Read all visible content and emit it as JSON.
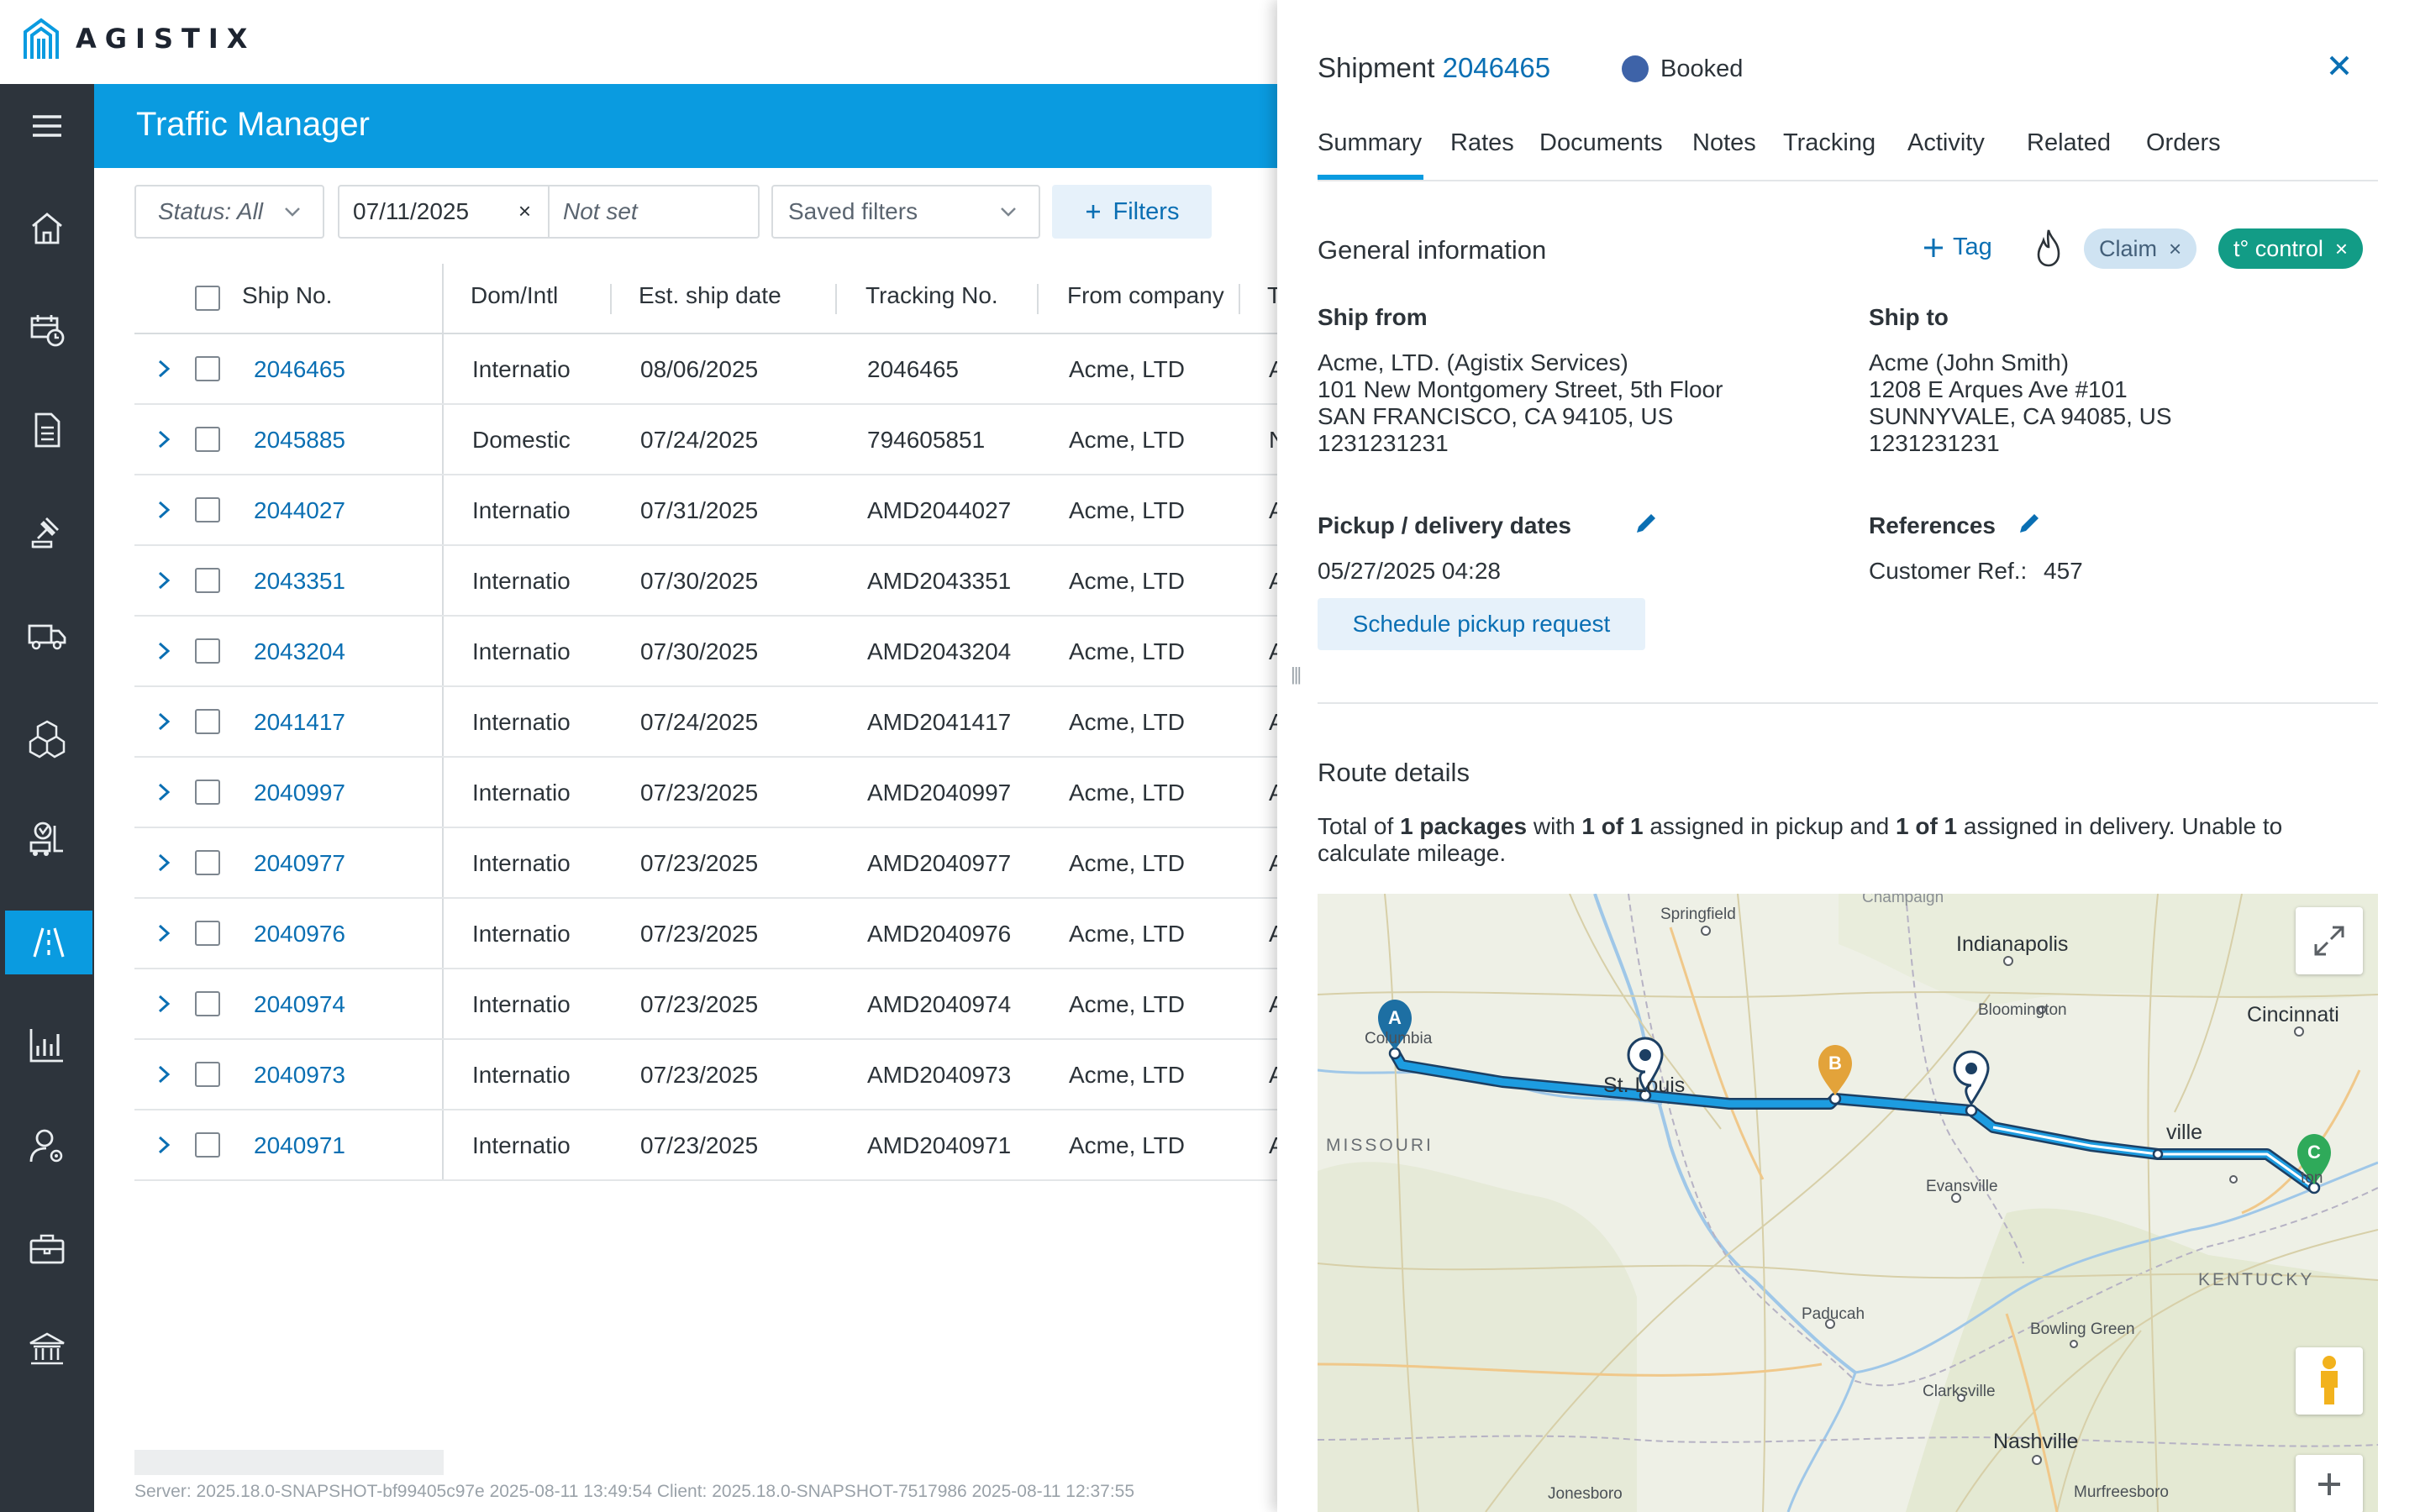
{
  "brand": {
    "name": "AGISTIX"
  },
  "header": {
    "title": "Traffic Manager"
  },
  "nav": {
    "items": [
      "menu-icon",
      "home-icon",
      "shipment-schedule-icon",
      "document-icon",
      "auction-gavel-icon",
      "truck-icon",
      "packages-icon",
      "warehouse-forklift-icon",
      "traffic-routes-icon",
      "reports-chart-icon",
      "user-settings-icon",
      "toolbox-icon",
      "institution-icon"
    ],
    "active": "traffic-routes-icon"
  },
  "filters": {
    "status": "Status: All",
    "date_from": "07/11/2025",
    "date_to_placeholder": "Not set",
    "saved_filters": "Saved filters",
    "filters_button": "Filters"
  },
  "table": {
    "columns": [
      "Ship No.",
      "Dom/Intl",
      "Est. ship date",
      "Tracking No.",
      "From company",
      "T"
    ],
    "rows": [
      {
        "ship_no": "2046465",
        "dom_intl": "Internatio",
        "est_ship_date": "08/06/2025",
        "tracking_no": "2046465",
        "from_company": "Acme, LTD",
        "to": "A"
      },
      {
        "ship_no": "2045885",
        "dom_intl": "Domestic",
        "est_ship_date": "07/24/2025",
        "tracking_no": "794605851",
        "from_company": "Acme, LTD",
        "to": "N"
      },
      {
        "ship_no": "2044027",
        "dom_intl": "Internatio",
        "est_ship_date": "07/31/2025",
        "tracking_no": "AMD2044027",
        "from_company": "Acme, LTD",
        "to": "A"
      },
      {
        "ship_no": "2043351",
        "dom_intl": "Internatio",
        "est_ship_date": "07/30/2025",
        "tracking_no": "AMD2043351",
        "from_company": "Acme, LTD",
        "to": "A"
      },
      {
        "ship_no": "2043204",
        "dom_intl": "Internatio",
        "est_ship_date": "07/30/2025",
        "tracking_no": "AMD2043204",
        "from_company": "Acme, LTD",
        "to": "A"
      },
      {
        "ship_no": "2041417",
        "dom_intl": "Internatio",
        "est_ship_date": "07/24/2025",
        "tracking_no": "AMD2041417",
        "from_company": "Acme, LTD",
        "to": "A"
      },
      {
        "ship_no": "2040997",
        "dom_intl": "Internatio",
        "est_ship_date": "07/23/2025",
        "tracking_no": "AMD2040997",
        "from_company": "Acme, LTD",
        "to": "A"
      },
      {
        "ship_no": "2040977",
        "dom_intl": "Internatio",
        "est_ship_date": "07/23/2025",
        "tracking_no": "AMD2040977",
        "from_company": "Acme, LTD",
        "to": "A"
      },
      {
        "ship_no": "2040976",
        "dom_intl": "Internatio",
        "est_ship_date": "07/23/2025",
        "tracking_no": "AMD2040976",
        "from_company": "Acme, LTD",
        "to": "A"
      },
      {
        "ship_no": "2040974",
        "dom_intl": "Internatio",
        "est_ship_date": "07/23/2025",
        "tracking_no": "AMD2040974",
        "from_company": "Acme, LTD",
        "to": "A"
      },
      {
        "ship_no": "2040973",
        "dom_intl": "Internatio",
        "est_ship_date": "07/23/2025",
        "tracking_no": "AMD2040973",
        "from_company": "Acme, LTD",
        "to": "A"
      },
      {
        "ship_no": "2040971",
        "dom_intl": "Internatio",
        "est_ship_date": "07/23/2025",
        "tracking_no": "AMD2040971",
        "from_company": "Acme, LTD",
        "to": "A"
      }
    ]
  },
  "footer": {
    "version_info": "Server: 2025.18.0-SNAPSHOT-bf99405c97e 2025-08-11 13:49:54   Client: 2025.18.0-SNAPSHOT-7517986 2025-08-11 12:37:55"
  },
  "panel": {
    "title_prefix": "Shipment",
    "shipment_no": "2046465",
    "status": "Booked",
    "status_color": "#3e63a8",
    "tabs": [
      "Summary",
      "Rates",
      "Documents",
      "Notes",
      "Tracking",
      "Activity",
      "Related",
      "Orders"
    ],
    "active_tab": "Summary",
    "general_info": {
      "title": "General information",
      "tag_button": "Tag",
      "tags": [
        {
          "label": "Claim",
          "color": "#cfe3f2"
        },
        {
          "label": "t° control",
          "color": "#129c86"
        }
      ]
    },
    "ship_from": {
      "label": "Ship from",
      "lines": [
        "Acme, LTD. (Agistix Services)",
        "101 New Montgomery Street, 5th Floor",
        "SAN FRANCISCO, CA 94105, US",
        "1231231231"
      ]
    },
    "ship_to": {
      "label": "Ship to",
      "lines": [
        "Acme (John Smith)",
        "1208 E Arques Ave #101",
        "SUNNYVALE, CA 94085, US",
        "1231231231"
      ]
    },
    "dates": {
      "label": "Pickup / delivery dates",
      "value": "05/27/2025 04:28",
      "schedule_button": "Schedule pickup request"
    },
    "references": {
      "label": "References",
      "customer_ref_label": "Customer Ref.:",
      "customer_ref_value": "457"
    },
    "route": {
      "title": "Route details",
      "s1": "Total of ",
      "b1": "1 packages",
      "s2": " with ",
      "b2": "1 of 1",
      "s3": " assigned in pickup and ",
      "b3": "1 of 1",
      "s4": " assigned in delivery. Unable to calculate mileage."
    },
    "map": {
      "labels": {
        "springfield": "Springfield",
        "indianapolis": "Indianapolis",
        "cincinnati": "Cincinnati",
        "bloomington": "Bloomington",
        "columbia": "Columbia",
        "st_louis": "St. Louis",
        "missouri": "MISSOURI",
        "evansville": "Evansville",
        "kentucky": "KENTUCKY",
        "paducah": "Paducah",
        "bowling_green": "Bowling Green",
        "clarksville": "Clarksville",
        "nashville": "Nashville",
        "jonesboro": "Jonesboro",
        "murfreesboro": "Murfreesboro",
        "champaign": "Champaign",
        "louisville": "ville",
        "lexington": "ton"
      },
      "markers": [
        "A",
        "B",
        "C"
      ],
      "route_color": "#1d9ce0"
    }
  }
}
